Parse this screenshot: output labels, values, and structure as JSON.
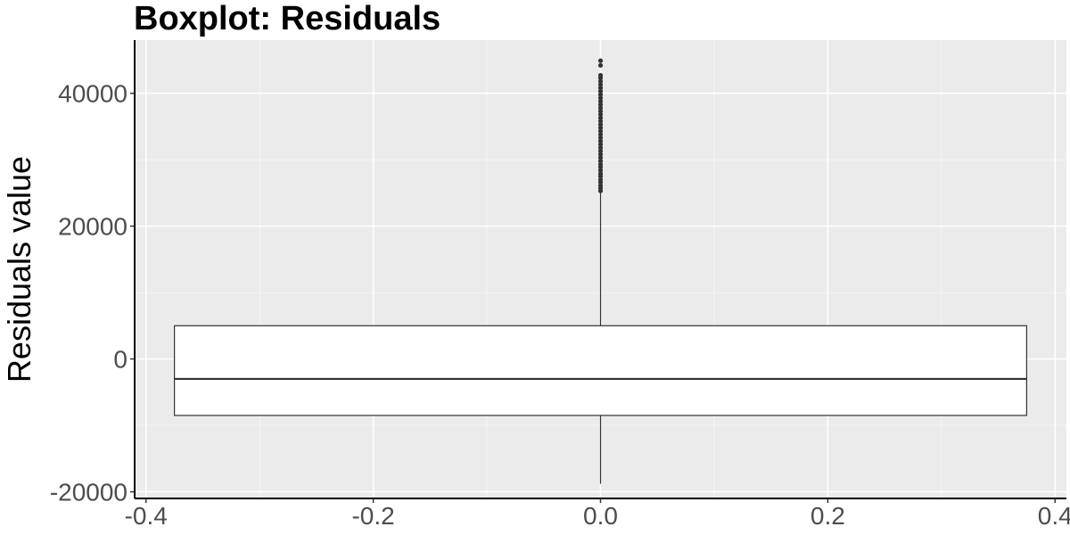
{
  "chart_data": {
    "type": "boxplot",
    "title": "Boxplot: Residuals",
    "xlabel": "",
    "ylabel": "Residuals value",
    "xlim": [
      -0.41,
      0.41
    ],
    "ylim": [
      -21000,
      48000
    ],
    "x_ticks": [
      -0.4,
      -0.2,
      0.0,
      0.2,
      0.4
    ],
    "x_tick_labels": [
      "-0.4",
      "-0.2",
      "0.0",
      "0.2",
      "0.4"
    ],
    "y_ticks": [
      -20000,
      0,
      20000,
      40000
    ],
    "y_tick_labels": [
      "-20000",
      "0",
      "20000",
      "40000"
    ],
    "grid": true,
    "box": {
      "x_center": 0.0,
      "x_left": -0.375,
      "x_right": 0.375,
      "lower_whisker": -18800,
      "q1": -8500,
      "median": -3000,
      "q3": 5000,
      "upper_whisker": 25200
    },
    "outliers": [
      25300,
      25700,
      26100,
      26600,
      27000,
      27500,
      27900,
      28400,
      28900,
      29300,
      29800,
      30300,
      30800,
      31300,
      31800,
      32300,
      32800,
      33300,
      33800,
      34300,
      34800,
      35300,
      35800,
      36300,
      36800,
      37300,
      37800,
      38300,
      38800,
      39300,
      39800,
      40300,
      40800,
      41300,
      41800,
      42300,
      42700,
      44200,
      44900
    ]
  },
  "colors": {
    "panel_background": "#ebebeb",
    "grid_major": "#ffffff",
    "grid_minor": "#f5f5f5",
    "axis_line": "#000000",
    "box_fill": "#ffffff",
    "box_stroke": "#333333",
    "outlier": "#333333"
  }
}
